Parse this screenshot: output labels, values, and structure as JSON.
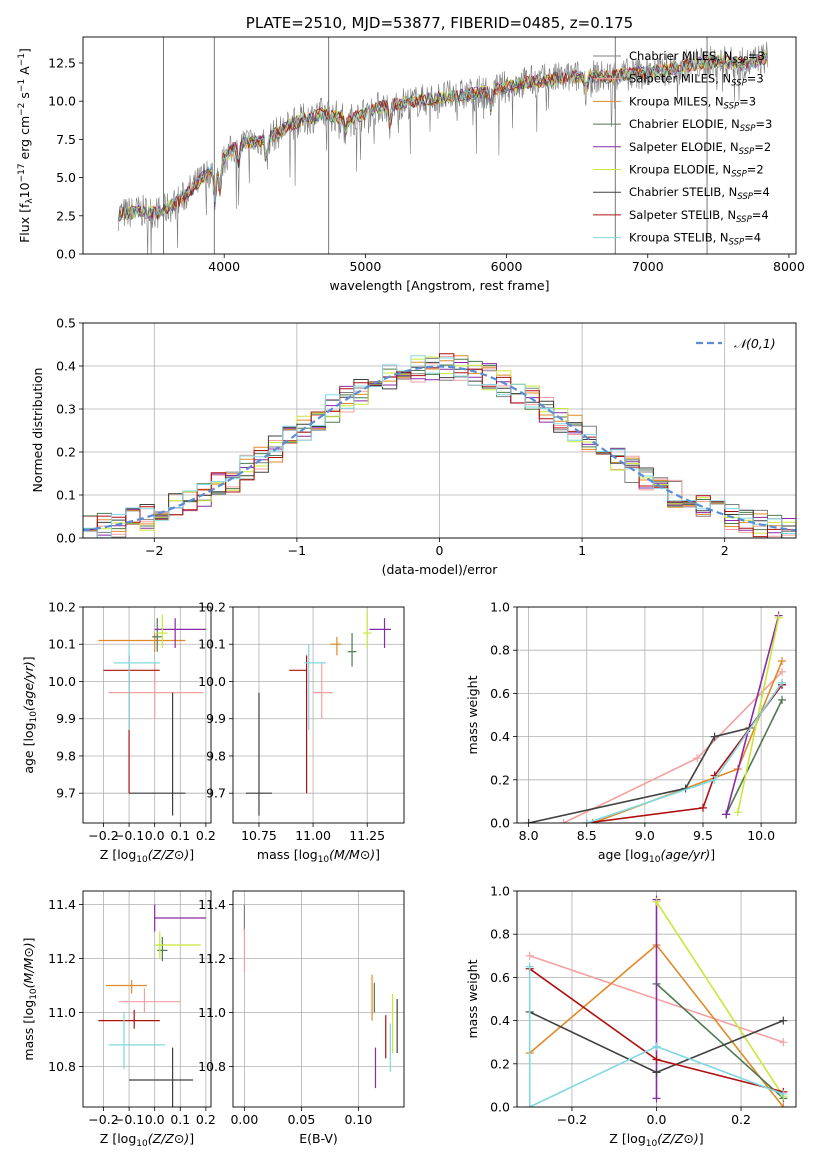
{
  "page_title": "PLATE=2510, MJD=53877, FIBERID=0485, z=0.175",
  "model_colors": [
    "#808080",
    "#f4a0a0",
    "#e08a28",
    "#4f7a4f",
    "#8a2aa8",
    "#c8e838",
    "#404040",
    "#b01010",
    "#80d8e0"
  ],
  "chart_data": [
    {
      "id": "spectrum",
      "type": "line",
      "title": "PLATE=2510, MJD=53877, FIBERID=0485, z=0.175",
      "xlabel": "wavelength [Angstrom, rest frame]",
      "ylabel": "Flux [f_λ 10^-17 erg cm^-2 s^-1 A^-1]",
      "xlim": [
        3000,
        8050
      ],
      "ylim": [
        0,
        14.2
      ],
      "xticks": [
        4000,
        5000,
        6000,
        7000,
        8000
      ],
      "yticks": [
        0.0,
        2.5,
        5.0,
        7.5,
        10.0,
        12.5
      ],
      "grid": false,
      "legend_position": "top-right",
      "continuum": {
        "x": [
          3250,
          3400,
          3550,
          3700,
          3850,
          3950,
          4100,
          4300,
          4500,
          4700,
          4900,
          5100,
          5300,
          5500,
          5700,
          5900,
          6100,
          6300,
          6500,
          6700,
          6900,
          7100,
          7300,
          7500,
          7700,
          7850
        ],
        "y": [
          2.6,
          2.8,
          2.7,
          3.6,
          5.0,
          5.8,
          7.2,
          7.5,
          8.6,
          9.2,
          8.8,
          9.6,
          9.9,
          10.2,
          10.4,
          10.7,
          11.2,
          11.4,
          11.6,
          11.6,
          11.8,
          12.0,
          12.4,
          12.6,
          12.4,
          12.9
        ]
      },
      "series": [
        {
          "name": "Chabrier MILES, N_SSP=3"
        },
        {
          "name": "Salpeter MILES, N_SSP=3"
        },
        {
          "name": "Kroupa MILES, N_SSP=3"
        },
        {
          "name": "Chabrier ELODIE, N_SSP=3"
        },
        {
          "name": "Salpeter ELODIE, N_SSP=2"
        },
        {
          "name": "Kroupa ELODIE, N_SSP=2"
        },
        {
          "name": "Chabrier STELIB, N_SSP=4"
        },
        {
          "name": "Salpeter STELIB, N_SSP=4"
        },
        {
          "name": "Kroupa STELIB, N_SSP=4"
        }
      ],
      "legend_entries": [
        {
          "prefix": "Chabrier MILES, N",
          "suffix": "=3"
        },
        {
          "prefix": "Salpeter MILES, N",
          "suffix": "=3"
        },
        {
          "prefix": "Kroupa MILES, N",
          "suffix": "=3"
        },
        {
          "prefix": "Chabrier ELODIE, N",
          "suffix": "=3"
        },
        {
          "prefix": "Salpeter ELODIE, N",
          "suffix": "=2"
        },
        {
          "prefix": "Kroupa ELODIE, N",
          "suffix": "=2"
        },
        {
          "prefix": "Chabrier STELIB, N",
          "suffix": "=4"
        },
        {
          "prefix": "Salpeter STELIB, N",
          "suffix": "=4"
        },
        {
          "prefix": "Kroupa STELIB, N",
          "suffix": "=4"
        }
      ],
      "legend_subscript": "SSP"
    },
    {
      "id": "residuals",
      "type": "histogram",
      "xlabel": "(data-model)/error",
      "ylabel": "Normed distribution",
      "xlim": [
        -2.5,
        2.5
      ],
      "ylim": [
        0,
        0.5
      ],
      "xticks": [
        -2,
        -1,
        0,
        1,
        2
      ],
      "yticks": [
        0.0,
        0.1,
        0.2,
        0.3,
        0.4,
        0.5
      ],
      "grid": true,
      "legend": "𝒩(0,1)",
      "legend_position": "top-right",
      "bin_width": 0.1,
      "reference_curve": "standard normal N(0,1)"
    },
    {
      "id": "age_vs_Z",
      "type": "errorbar",
      "xlabel": "Z [log10(Z/Z⊙)]",
      "ylabel": "age [log10(age/yr)]",
      "xlim": [
        -0.28,
        0.22
      ],
      "ylim": [
        9.62,
        10.2
      ],
      "xticks": [
        -0.2,
        -0.1,
        0.0,
        0.1,
        0.2
      ],
      "yticks": [
        9.7,
        9.8,
        9.9,
        10.0,
        10.1,
        10.2
      ],
      "grid": true,
      "points": [
        {
          "x": -0.03,
          "xlo": 0.0,
          "xhi": 0.0,
          "y": 10.14,
          "ylo": 0.0,
          "yhi": 0.0
        },
        {
          "x": 0.0,
          "xlo": 0.18,
          "xhi": 0.19,
          "y": 9.97,
          "ylo": 0.07,
          "yhi": 0.08
        },
        {
          "x": 0.0,
          "xlo": 0.22,
          "xhi": 0.12,
          "y": 10.11,
          "ylo": 0.03,
          "yhi": 0.02
        },
        {
          "x": 0.01,
          "xlo": 0.02,
          "xhi": 0.02,
          "y": 10.12,
          "ylo": 0.04,
          "yhi": 0.05
        },
        {
          "x": 0.08,
          "xlo": 0.08,
          "xhi": 0.12,
          "y": 10.14,
          "ylo": 0.05,
          "yhi": 0.03
        },
        {
          "x": 0.03,
          "xlo": 0.02,
          "xhi": 0.02,
          "y": 10.13,
          "ylo": 0.04,
          "yhi": 0.05
        },
        {
          "x": 0.07,
          "xlo": 0.17,
          "xhi": 0.05,
          "y": 9.7,
          "ylo": 0.06,
          "yhi": 0.27
        },
        {
          "x": -0.1,
          "xlo": 0.1,
          "xhi": 0.12,
          "y": 10.03,
          "ylo": 0.33,
          "yhi": 0.04
        },
        {
          "x": -0.1,
          "xlo": 0.06,
          "xhi": 0.12,
          "y": 10.05,
          "ylo": 0.18,
          "yhi": 0.05
        }
      ]
    },
    {
      "id": "age_vs_mass",
      "type": "errorbar",
      "xlabel": "mass [log10(M/M⊙)]",
      "ylabel": "",
      "xlim": [
        10.63,
        11.42
      ],
      "ylim": [
        9.62,
        10.2
      ],
      "xticks": [
        10.75,
        11.0,
        11.25
      ],
      "yticks": [
        9.7,
        9.8,
        9.9,
        10.0,
        10.1,
        10.2
      ],
      "grid": true,
      "points": [
        {
          "x": 11.13,
          "xlo": 0.0,
          "xhi": 0.0,
          "y": 10.11,
          "ylo": 0.0,
          "yhi": 0.0
        },
        {
          "x": 11.04,
          "xlo": 0.04,
          "xhi": 0.05,
          "y": 9.97,
          "ylo": 0.07,
          "yhi": 0.08
        },
        {
          "x": 11.11,
          "xlo": 0.03,
          "xhi": 0.02,
          "y": 10.1,
          "ylo": 0.03,
          "yhi": 0.02
        },
        {
          "x": 11.18,
          "xlo": 0.02,
          "xhi": 0.02,
          "y": 10.08,
          "ylo": 0.04,
          "yhi": 0.05
        },
        {
          "x": 11.33,
          "xlo": 0.07,
          "xhi": 0.03,
          "y": 10.14,
          "ylo": 0.05,
          "yhi": 0.03
        },
        {
          "x": 11.25,
          "xlo": 0.02,
          "xhi": 0.02,
          "y": 10.13,
          "ylo": 0.04,
          "yhi": 0.06
        },
        {
          "x": 10.75,
          "xlo": 0.06,
          "xhi": 0.06,
          "y": 9.7,
          "ylo": 0.06,
          "yhi": 0.27
        },
        {
          "x": 10.97,
          "xlo": 0.08,
          "xhi": 0.0,
          "y": 10.03,
          "ylo": 0.33,
          "yhi": 0.04
        },
        {
          "x": 10.98,
          "xlo": 0.02,
          "xhi": 0.08,
          "y": 10.05,
          "ylo": 0.18,
          "yhi": 0.05
        }
      ]
    },
    {
      "id": "mass_weight_vs_age",
      "type": "line",
      "xlabel": "age [log10(age/yr)]",
      "ylabel": "mass weight",
      "xlim": [
        7.9,
        10.3
      ],
      "ylim": [
        0,
        1.0
      ],
      "xticks": [
        8.0,
        8.5,
        9.0,
        9.5,
        10.0
      ],
      "yticks": [
        0.0,
        0.2,
        0.4,
        0.6,
        0.8,
        1.0
      ],
      "grid": true,
      "series": [
        {
          "x": [],
          "y": []
        },
        {
          "x": [
            8.3,
            9.45,
            10.18
          ],
          "y": [
            0.0,
            0.3,
            0.7
          ]
        },
        {
          "x": [
            8.55,
            9.8,
            10.18
          ],
          "y": [
            0.0,
            0.25,
            0.75
          ]
        },
        {
          "x": [
            9.7,
            10.18
          ],
          "y": [
            0.04,
            0.57
          ]
        },
        {
          "x": [
            9.7,
            10.15
          ],
          "y": [
            0.04,
            0.96
          ]
        },
        {
          "x": [
            9.8,
            10.15
          ],
          "y": [
            0.05,
            0.95
          ]
        },
        {
          "x": [
            8.0,
            9.35,
            9.6,
            9.9,
            10.18
          ],
          "y": [
            0.0,
            0.16,
            0.4,
            0.44,
            0.64
          ]
        },
        {
          "x": [
            8.5,
            9.5,
            9.6,
            10.18
          ],
          "y": [
            0.0,
            0.07,
            0.22,
            0.64
          ]
        },
        {
          "x": [
            8.5,
            9.6,
            10.18
          ],
          "y": [
            0.0,
            0.2,
            0.65
          ]
        }
      ]
    },
    {
      "id": "mass_vs_Z",
      "type": "errorbar",
      "xlabel": "Z [log10(Z/Z⊙)]",
      "ylabel": "mass [log10(M/M⊙)]",
      "xlim": [
        -0.28,
        0.22
      ],
      "ylim": [
        10.65,
        11.45
      ],
      "xticks": [
        -0.2,
        -0.1,
        0.0,
        0.1,
        0.2
      ],
      "yticks": [
        10.8,
        11.0,
        11.2,
        11.4
      ],
      "grid": true,
      "points": [
        {
          "x": -0.05,
          "xlo": 0.0,
          "xhi": 0.0,
          "y": 11.1,
          "ylo": 0.0,
          "yhi": 0.0
        },
        {
          "x": -0.04,
          "xlo": 0.1,
          "xhi": 0.14,
          "y": 11.04,
          "ylo": 0.04,
          "yhi": 0.05
        },
        {
          "x": -0.09,
          "xlo": 0.1,
          "xhi": 0.06,
          "y": 11.1,
          "ylo": 0.03,
          "yhi": 0.02
        },
        {
          "x": 0.03,
          "xlo": 0.02,
          "xhi": 0.02,
          "y": 11.23,
          "ylo": 0.04,
          "yhi": 0.05
        },
        {
          "x": 0.0,
          "xlo": 0.0,
          "xhi": 0.2,
          "y": 11.35,
          "ylo": 0.05,
          "yhi": 0.05
        },
        {
          "x": 0.02,
          "xlo": 0.02,
          "xhi": 0.16,
          "y": 11.25,
          "ylo": 0.05,
          "yhi": 0.05
        },
        {
          "x": 0.07,
          "xlo": 0.17,
          "xhi": 0.08,
          "y": 10.75,
          "ylo": 0.1,
          "yhi": 0.12
        },
        {
          "x": -0.08,
          "xlo": 0.14,
          "xhi": 0.1,
          "y": 10.97,
          "ylo": 0.03,
          "yhi": 0.04
        },
        {
          "x": -0.12,
          "xlo": 0.06,
          "xhi": 0.16,
          "y": 10.88,
          "ylo": 0.09,
          "yhi": 0.12
        }
      ]
    },
    {
      "id": "mass_vs_EBV",
      "type": "errorbar",
      "xlabel": "E(B-V)",
      "ylabel": "",
      "xlim": [
        -0.01,
        0.14
      ],
      "ylim": [
        10.65,
        11.45
      ],
      "xticks": [
        0.0,
        0.05,
        0.1
      ],
      "xtick_labels": [
        "0.00",
        "0.05",
        "0.10"
      ],
      "yticks": [
        10.8,
        11.0,
        11.2,
        11.4
      ],
      "grid": true,
      "points": [
        {
          "x": 0.0,
          "xlo": 0.0,
          "xhi": 0.0,
          "y": 11.35,
          "ylo": 0.05,
          "yhi": 0.05
        },
        {
          "x": 0.0,
          "xlo": 0.0,
          "xhi": 0.0,
          "y": 11.23,
          "ylo": 0.08,
          "yhi": 0.08
        },
        {
          "x": 0.112,
          "xlo": 0.0,
          "xhi": 0.0,
          "y": 11.04,
          "ylo": 0.07,
          "yhi": 0.1
        },
        {
          "x": 0.114,
          "xlo": 0.0,
          "xhi": 0.0,
          "y": 11.06,
          "ylo": 0.06,
          "yhi": 0.05
        },
        {
          "x": 0.115,
          "xlo": 0.0,
          "xhi": 0.0,
          "y": 10.77,
          "ylo": 0.05,
          "yhi": 0.1
        },
        {
          "x": 0.13,
          "xlo": 0.0,
          "xhi": 0.0,
          "y": 10.96,
          "ylo": 0.11,
          "yhi": 0.11
        },
        {
          "x": 0.134,
          "xlo": 0.0,
          "xhi": 0.0,
          "y": 10.95,
          "ylo": 0.1,
          "yhi": 0.1
        },
        {
          "x": 0.124,
          "xlo": 0.0,
          "xhi": 0.0,
          "y": 10.91,
          "ylo": 0.08,
          "yhi": 0.08
        },
        {
          "x": 0.128,
          "xlo": 0.0,
          "xhi": 0.0,
          "y": 10.87,
          "ylo": 0.09,
          "yhi": 0.09
        }
      ]
    },
    {
      "id": "mass_weight_vs_Z",
      "type": "line",
      "xlabel": "Z [log10(Z/Z⊙)]",
      "ylabel": "mass weight",
      "xlim": [
        -0.33,
        0.33
      ],
      "ylim": [
        0,
        1.0
      ],
      "xticks": [
        -0.2,
        0.0,
        0.2
      ],
      "yticks": [
        0.0,
        0.2,
        0.4,
        0.6,
        0.8,
        1.0
      ],
      "grid": true,
      "series": [
        {
          "x": [],
          "y": []
        },
        {
          "x": [
            -0.3,
            0.3
          ],
          "y": [
            0.7,
            0.3
          ]
        },
        {
          "x": [
            -0.3,
            0.0,
            0.3
          ],
          "y": [
            0.25,
            0.75,
            0.0
          ]
        },
        {
          "x": [
            0.0,
            0.3
          ],
          "y": [
            0.57,
            0.04
          ]
        },
        {
          "x": [
            0.0,
            0.0
          ],
          "y": [
            0.04,
            0.96
          ]
        },
        {
          "x": [
            0.0,
            0.3
          ],
          "y": [
            0.95,
            0.05
          ]
        },
        {
          "x": [
            -0.3,
            0.0,
            0.3
          ],
          "y": [
            0.44,
            0.16,
            0.4
          ]
        },
        {
          "x": [
            -0.3,
            0.0,
            0.3
          ],
          "y": [
            0.64,
            0.22,
            0.07
          ]
        },
        {
          "x": [
            -0.3,
            -0.3,
            0.0,
            0.3
          ],
          "y": [
            0.65,
            0.0,
            0.28,
            0.06
          ]
        }
      ]
    }
  ]
}
